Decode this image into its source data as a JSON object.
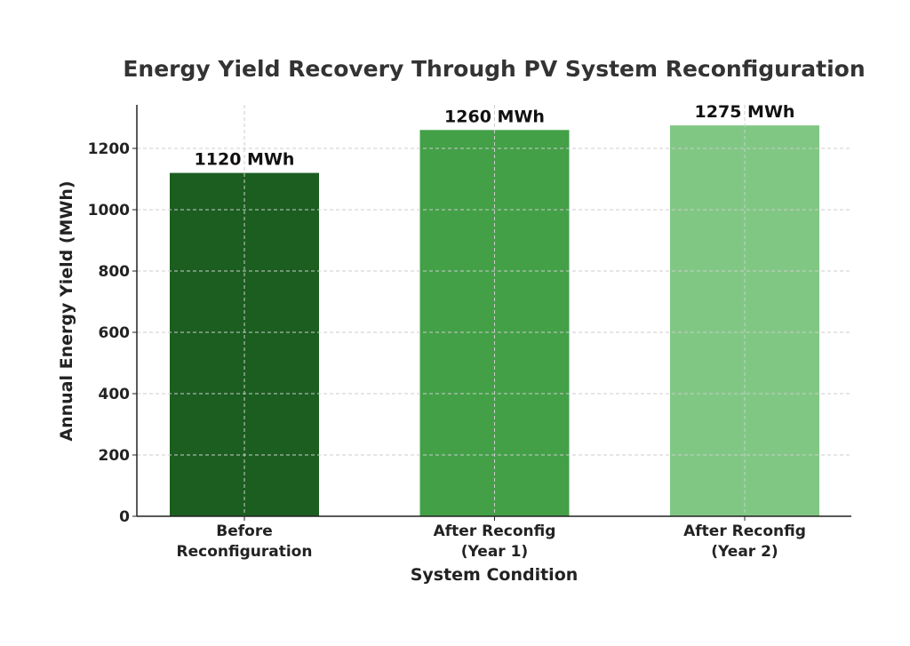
{
  "chart_data": {
    "type": "bar",
    "title": "Energy Yield Recovery Through PV System Reconfiguration",
    "xlabel": "System Condition",
    "ylabel": "Annual Energy Yield (MWh)",
    "categories": [
      [
        "Before",
        "Reconfiguration"
      ],
      [
        "After Reconfig",
        "(Year 1)"
      ],
      [
        "After Reconfig",
        "(Year 2)"
      ]
    ],
    "values": [
      1120,
      1260,
      1275
    ],
    "data_labels": [
      "1120 MWh",
      "1260 MWh",
      "1275 MWh"
    ],
    "colors": [
      "#1b5e20",
      "#43a047",
      "#81c784"
    ],
    "ylim": [
      0,
      1340
    ],
    "yticks": [
      0,
      200,
      400,
      600,
      800,
      1000,
      1200
    ],
    "grid": true
  }
}
